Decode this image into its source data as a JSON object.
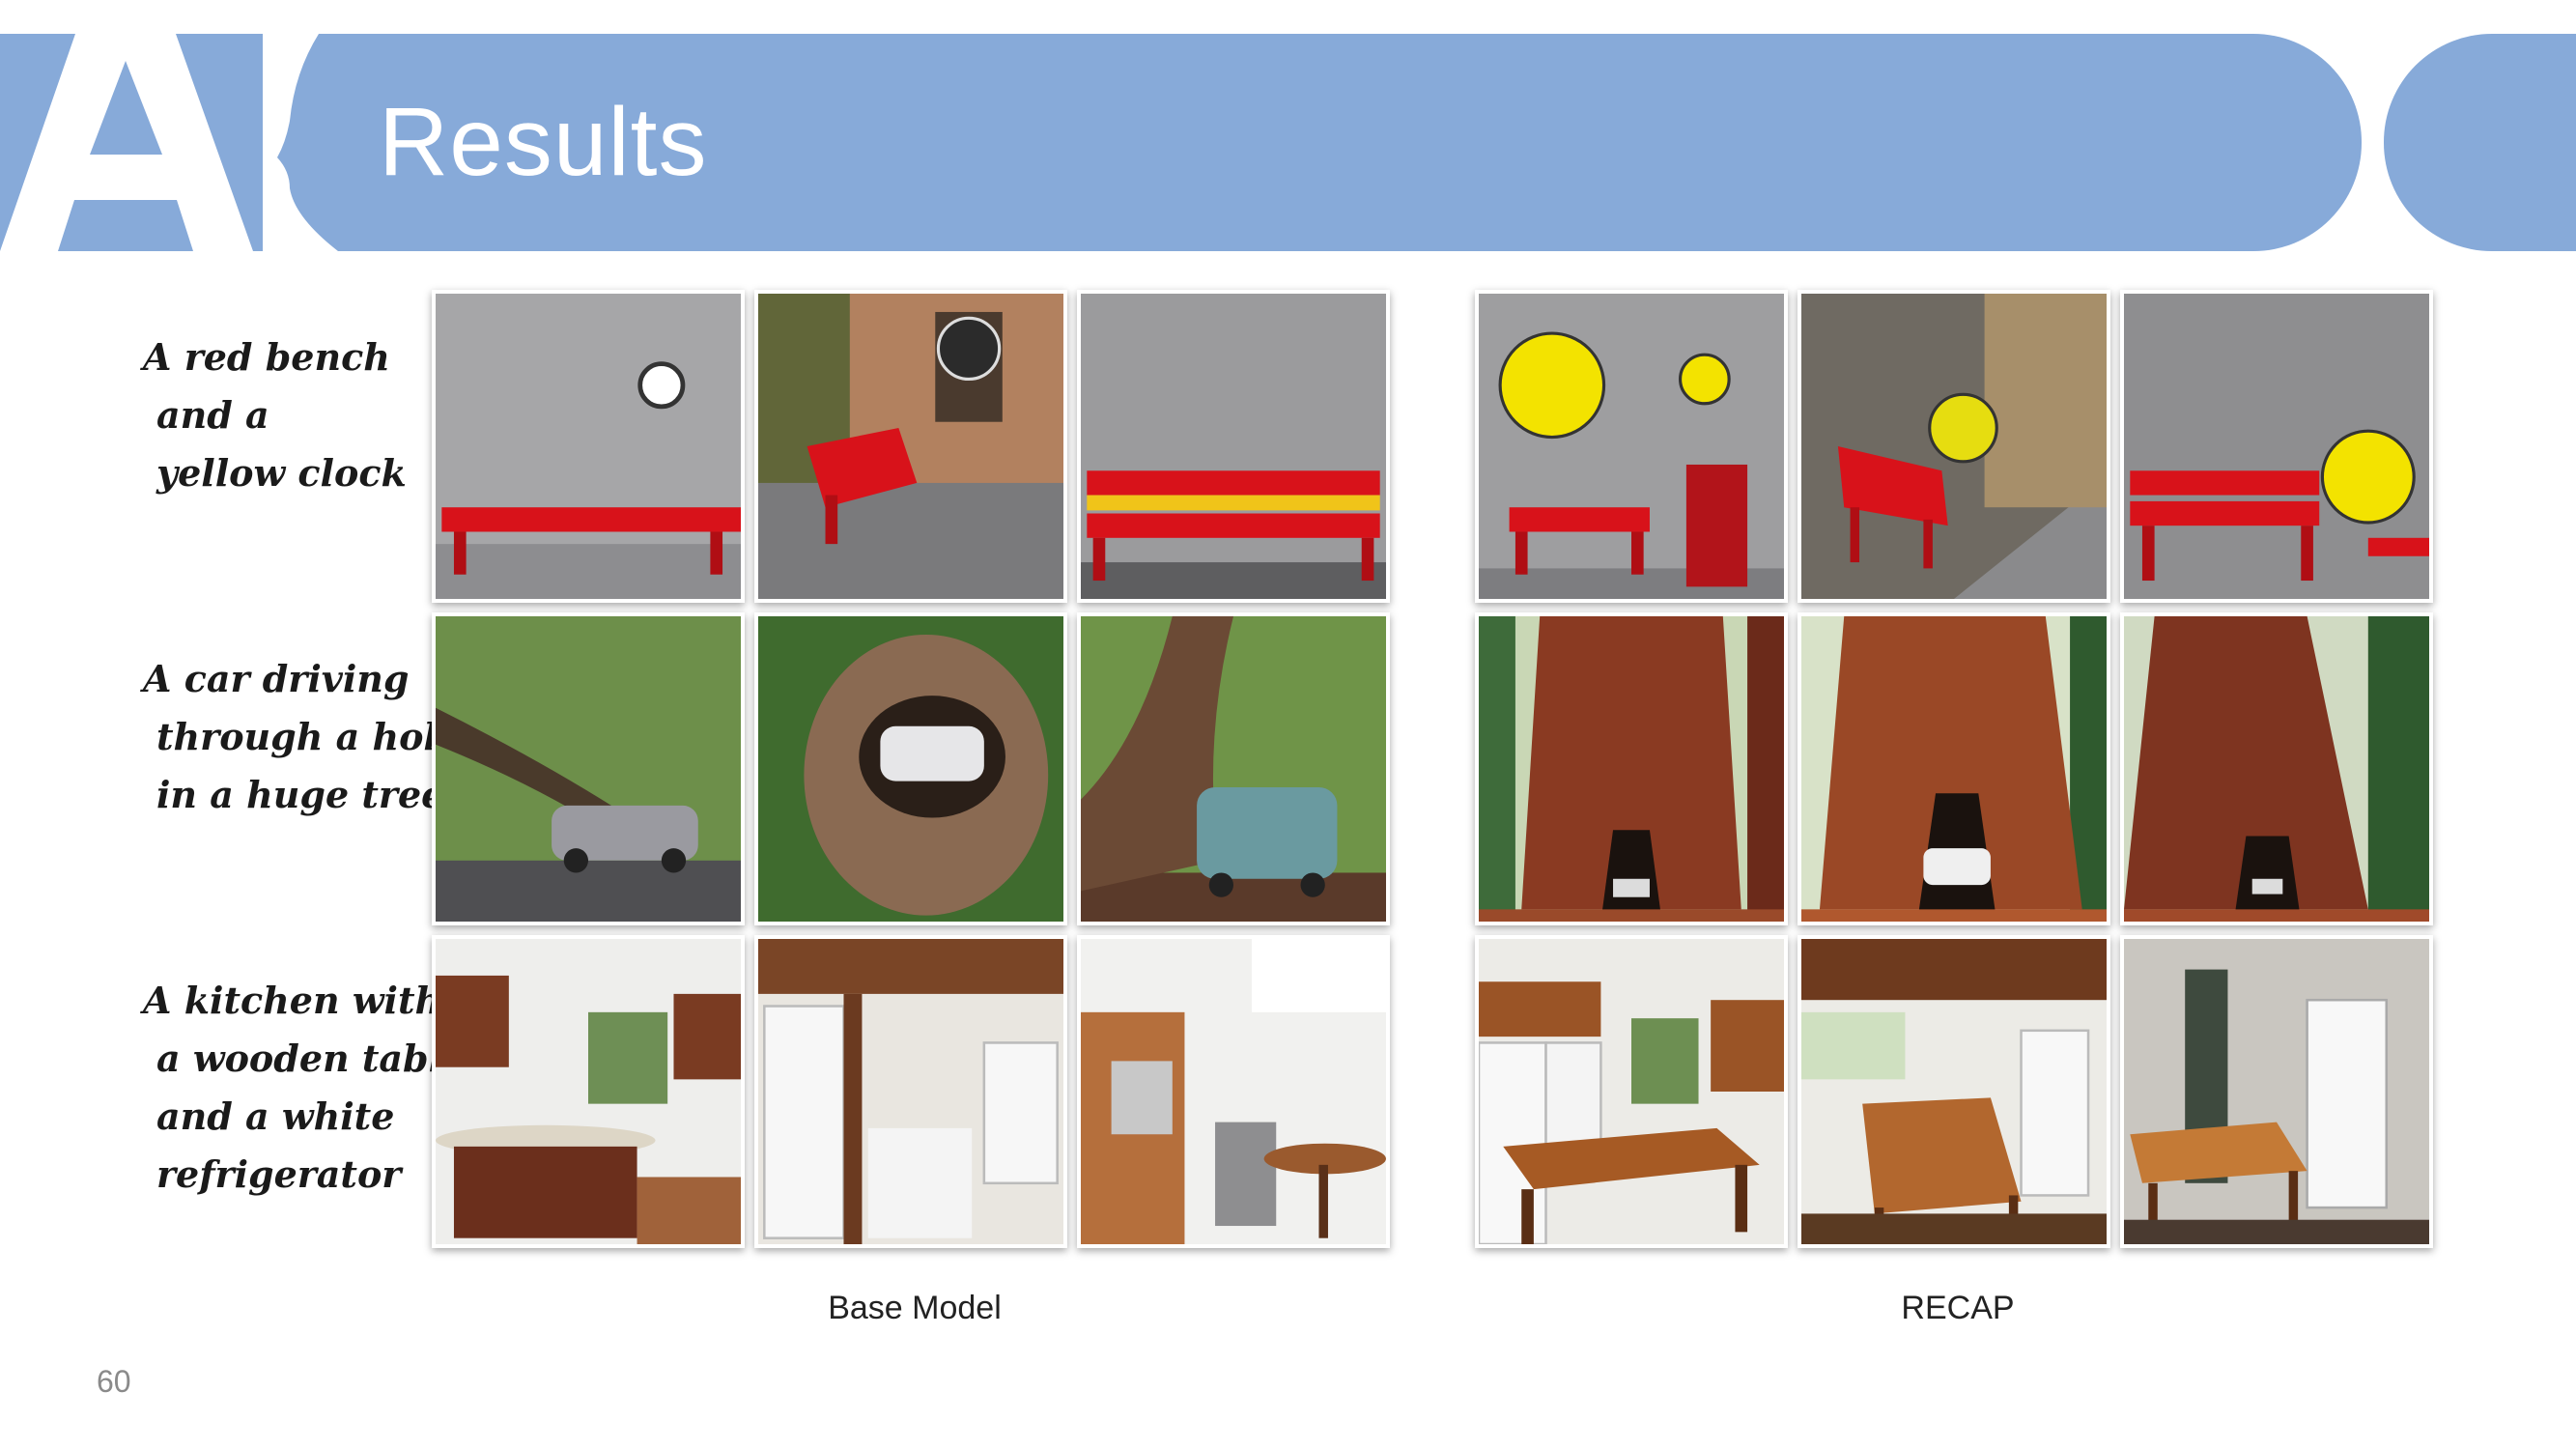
{
  "slide": {
    "title": "Results",
    "page_number": "60",
    "brand_color": "#87aad9"
  },
  "logo": {
    "text": "AI"
  },
  "prompts": [
    {
      "lines": [
        "A red bench",
        "and a",
        "yellow clock"
      ]
    },
    {
      "lines": [
        "A car driving",
        "through a hole",
        "in a huge tree"
      ]
    },
    {
      "lines": [
        "A kitchen with",
        "a wooden table",
        "and a white",
        "refrigerator"
      ]
    }
  ],
  "captions": {
    "left": "Base Model",
    "right": "RECAP"
  }
}
